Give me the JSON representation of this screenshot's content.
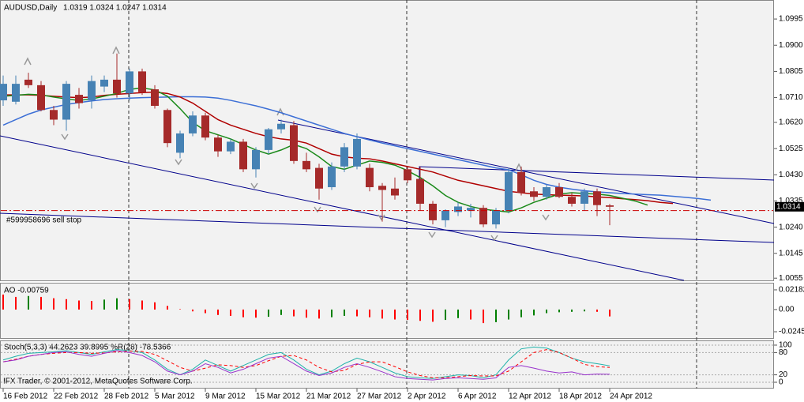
{
  "chart_data": [
    {
      "type": "candlestick",
      "title": "AUDUSD,Daily",
      "ohlc_text": "1.0319 1.0324 1.0247 1.0314",
      "categories": [
        "16 Feb 2012",
        null,
        null,
        null,
        "22 Feb 2012",
        null,
        null,
        null,
        "28 Feb 2012",
        null,
        null,
        null,
        "5 Mar 2012",
        null,
        null,
        null,
        "9 Mar 2012",
        null,
        null,
        null,
        "15 Mar 2012",
        null,
        null,
        null,
        "21 Mar 2012",
        null,
        null,
        null,
        "27 Mar 2012",
        null,
        null,
        null,
        "2 Apr 2012",
        null,
        null,
        null,
        "6 Apr 2012",
        null,
        null,
        null,
        "12 Apr 2012",
        null,
        null,
        null,
        "18 Apr 2012",
        null,
        null,
        null,
        "24 Apr 2012",
        null,
        null,
        null,
        null,
        null,
        null,
        null,
        null
      ],
      "open": [
        1.07,
        1.0695,
        1.0775,
        1.0755,
        1.0665,
        1.063,
        1.072,
        1.07,
        1.075,
        1.0775,
        1.0725,
        1.0805,
        1.074,
        1.0665,
        1.051,
        1.058,
        1.0645,
        1.0565,
        1.0515,
        1.055,
        1.045,
        1.052,
        1.0595,
        1.061,
        1.048,
        1.0455,
        1.0385,
        1.046,
        1.046,
        1.0455,
        1.039,
        1.038,
        1.045,
        1.0415,
        1.0325,
        1.0265,
        1.0295,
        1.03,
        1.031,
        1.025,
        1.03,
        1.044,
        1.037,
        1.035,
        1.0385,
        1.035,
        1.0325,
        1.037,
        1.0319,
        null,
        null,
        null,
        null,
        null,
        null,
        null,
        null
      ],
      "high": [
        1.079,
        1.079,
        1.08,
        1.077,
        1.068,
        1.077,
        1.0745,
        1.079,
        1.079,
        1.087,
        1.0815,
        1.0815,
        1.0755,
        1.067,
        1.059,
        1.066,
        1.0655,
        1.0575,
        1.056,
        1.056,
        1.053,
        1.06,
        1.063,
        1.0625,
        1.051,
        1.047,
        1.0475,
        1.0545,
        1.058,
        1.047,
        1.04,
        1.042,
        1.046,
        1.046,
        1.0335,
        1.0305,
        1.033,
        1.0325,
        1.032,
        1.031,
        1.0455,
        1.046,
        1.0385,
        1.0395,
        1.04,
        1.0365,
        1.038,
        1.038,
        1.0324,
        null,
        null,
        null,
        null,
        null,
        null,
        null,
        null
      ],
      "low": [
        1.068,
        1.0685,
        1.0745,
        1.066,
        1.061,
        1.059,
        1.067,
        1.067,
        1.073,
        1.071,
        1.07,
        1.072,
        1.067,
        1.053,
        1.049,
        1.057,
        1.0555,
        1.0495,
        1.0505,
        1.044,
        1.042,
        1.0505,
        1.058,
        1.047,
        1.044,
        1.034,
        1.0375,
        1.044,
        1.045,
        1.037,
        1.026,
        1.034,
        1.04,
        1.03,
        1.025,
        1.024,
        1.028,
        1.0275,
        1.024,
        1.0235,
        1.029,
        1.0355,
        1.0335,
        1.034,
        1.0345,
        1.0315,
        1.03,
        1.028,
        1.0247,
        null,
        null,
        null,
        null,
        null,
        null,
        null,
        null
      ],
      "close": [
        1.076,
        1.076,
        1.0755,
        1.0665,
        1.063,
        1.076,
        1.069,
        1.077,
        1.0775,
        1.0725,
        1.0805,
        1.073,
        1.068,
        1.0545,
        1.058,
        1.0645,
        1.0565,
        1.0515,
        1.055,
        1.045,
        1.052,
        1.0595,
        1.0615,
        1.048,
        1.045,
        1.038,
        1.046,
        1.053,
        1.056,
        1.0385,
        1.0375,
        1.0355,
        1.041,
        1.0325,
        1.0265,
        1.03,
        1.0315,
        1.031,
        1.025,
        1.03,
        1.044,
        1.0365,
        1.035,
        1.0385,
        1.035,
        1.0325,
        1.037,
        1.032,
        1.0314,
        null,
        null,
        null,
        null,
        null,
        null,
        null,
        null
      ],
      "up_color": "#4682b4",
      "down_color": "#a52a2a",
      "overlays": [
        {
          "color": "#3c6fd6",
          "values": [
            1.061,
            1.063,
            1.065,
            1.0665,
            1.0675,
            1.0685,
            1.0692,
            1.0698,
            1.0703,
            1.0706,
            1.0708,
            1.071,
            1.0711,
            1.0712,
            1.0713,
            1.0713,
            1.0712,
            1.0708,
            1.07,
            1.069,
            1.068,
            1.0668,
            1.0655,
            1.064,
            1.0625,
            1.061,
            1.0595,
            1.058,
            1.0568,
            1.0556,
            1.0545,
            1.0535,
            1.0525,
            1.0515,
            1.0505,
            1.0495,
            1.0485,
            1.0475,
            1.0465,
            1.0455,
            1.0448,
            1.043,
            1.041,
            1.0395,
            1.0385,
            1.0378,
            1.0372,
            1.0368,
            1.0365,
            1.0362,
            1.036,
            1.0358,
            1.0356,
            1.0352,
            1.0348,
            1.0344,
            1.0338
          ]
        },
        {
          "color": "#b00000",
          "values": [
            1.072,
            1.072,
            1.072,
            1.0718,
            1.0715,
            1.0712,
            1.071,
            1.0712,
            1.0718,
            1.0722,
            1.0725,
            1.0728,
            1.073,
            1.0725,
            1.0712,
            1.069,
            1.066,
            1.063,
            1.061,
            1.0595,
            1.058,
            1.0568,
            1.056,
            1.0555,
            1.0545,
            1.0525,
            1.0505,
            1.0495,
            1.049,
            1.0488,
            1.048,
            1.047,
            1.046,
            1.045,
            1.044,
            1.0425,
            1.041,
            1.04,
            1.039,
            1.038,
            1.037,
            1.0365,
            1.036,
            1.0358,
            1.0356,
            1.0355,
            1.0353,
            1.035,
            1.0347,
            1.0343,
            1.034,
            1.0336,
            1.033,
            1.0326,
            null,
            null,
            null
          ]
        },
        {
          "color": "#1a8a1a",
          "values": [
            1.0715,
            1.0718,
            1.0722,
            1.072,
            1.0712,
            1.0705,
            1.07,
            1.0705,
            1.0715,
            1.0725,
            1.074,
            1.0745,
            1.0738,
            1.0715,
            1.067,
            1.062,
            1.059,
            1.0575,
            1.056,
            1.054,
            1.052,
            1.0505,
            1.052,
            1.054,
            1.0525,
            1.0495,
            1.046,
            1.045,
            1.0465,
            1.048,
            1.0475,
            1.0465,
            1.0445,
            1.042,
            1.039,
            1.0355,
            1.033,
            1.0315,
            1.0305,
            1.03,
            1.0295,
            1.031,
            1.033,
            1.0345,
            1.036,
            1.0365,
            1.0362,
            1.036,
            1.0355,
            1.0345,
            1.0335,
            1.032,
            null,
            null,
            null,
            null,
            null
          ]
        }
      ],
      "ylim": [
        1.0047,
        1.1064
      ],
      "yticks": [
        1.0995,
        {
          "value": 1.09,
          "label": "1.0900"
        },
        1.0805,
        {
          "value": 1.071,
          "label": "1.0710"
        },
        {
          "value": 1.062,
          "label": "1.0620"
        },
        1.0525,
        {
          "value": 1.043,
          "label": "1.0430"
        },
        1.0335,
        {
          "value": 1.024,
          "label": "1.0240"
        },
        1.0145,
        1.0055
      ],
      "price_label": 1.0314,
      "order_line": {
        "label": "#599958696 sell stop",
        "value": 1.03,
        "color": "#cc0000"
      }
    },
    {
      "type": "bar",
      "title": "AO -0.00759",
      "values": [
        0.0166,
        0.014,
        0.015,
        0.014,
        0.0125,
        0.0115,
        0.01,
        0.0095,
        0.011,
        0.0125,
        0.0115,
        0.01,
        0.008,
        0.004,
        0.0005,
        -0.002,
        -0.004,
        -0.006,
        -0.007,
        -0.0085,
        -0.009,
        -0.008,
        -0.006,
        -0.0075,
        -0.009,
        -0.01,
        -0.0085,
        -0.007,
        -0.0075,
        -0.0085,
        -0.01,
        -0.011,
        -0.0115,
        -0.0125,
        -0.0135,
        -0.0115,
        -0.0095,
        -0.011,
        -0.015,
        -0.014,
        -0.011,
        -0.0085,
        -0.0065,
        -0.004,
        -0.003,
        -0.0025,
        -0.002,
        -0.0025,
        -0.00759
      ],
      "up_color": "#008000",
      "down_color": "#ff0000",
      "ylim": [
        -0.0324,
        0.0288
      ],
      "yticks": [
        0.02182,
        {
          "value": 0,
          "label": "0.00"
        },
        -0.02457
      ]
    },
    {
      "type": "line",
      "title": "Stoch(5,3,3) 44.2623 39.8995 %R(28) -78.5366",
      "series": [
        {
          "color": "#20b2aa",
          "values": [
            60,
            70,
            78,
            80,
            82,
            85,
            80,
            75,
            82,
            88,
            85,
            80,
            60,
            35,
            20,
            35,
            60,
            45,
            30,
            45,
            60,
            75,
            80,
            60,
            35,
            20,
            30,
            50,
            65,
            55,
            40,
            25,
            15,
            12,
            10,
            15,
            20,
            18,
            12,
            20,
            60,
            90,
            95,
            92,
            80,
            65,
            55,
            50,
            44.2623
          ]
        },
        {
          "color": "#ff0000",
          "style": "dashed",
          "values": [
            55,
            62,
            70,
            75,
            78,
            80,
            80,
            78,
            79,
            82,
            84,
            83,
            75,
            58,
            40,
            30,
            38,
            47,
            45,
            40,
            45,
            58,
            70,
            72,
            60,
            40,
            28,
            32,
            48,
            55,
            55,
            42,
            28,
            18,
            12,
            12,
            15,
            18,
            17,
            17,
            30,
            55,
            80,
            88,
            80,
            65,
            48,
            42,
            39.8995
          ]
        },
        {
          "color": "#9932cc",
          "axis": "y2",
          "values": [
            -45,
            -40,
            -30,
            -25,
            -20,
            -18,
            -25,
            -30,
            -22,
            -15,
            -20,
            -28,
            -45,
            -70,
            -80,
            -70,
            -50,
            -60,
            -75,
            -65,
            -50,
            -35,
            -30,
            -50,
            -70,
            -82,
            -75,
            -60,
            -50,
            -60,
            -72,
            -85,
            -90,
            -92,
            -94,
            -90,
            -88,
            -90,
            -92,
            -88,
            -60,
            -55,
            -62,
            -70,
            -75,
            -72,
            -80,
            -78,
            -78.5366
          ]
        }
      ],
      "ylim": [
        -14.9,
        110.6
      ],
      "yticks": [
        100,
        80,
        20,
        0
      ],
      "y2lim": [
        -114.9,
        10.6
      ],
      "grid": true
    }
  ],
  "copyright": "IFX Trader, © 2001-2012, MetaQuotes Software Corp."
}
